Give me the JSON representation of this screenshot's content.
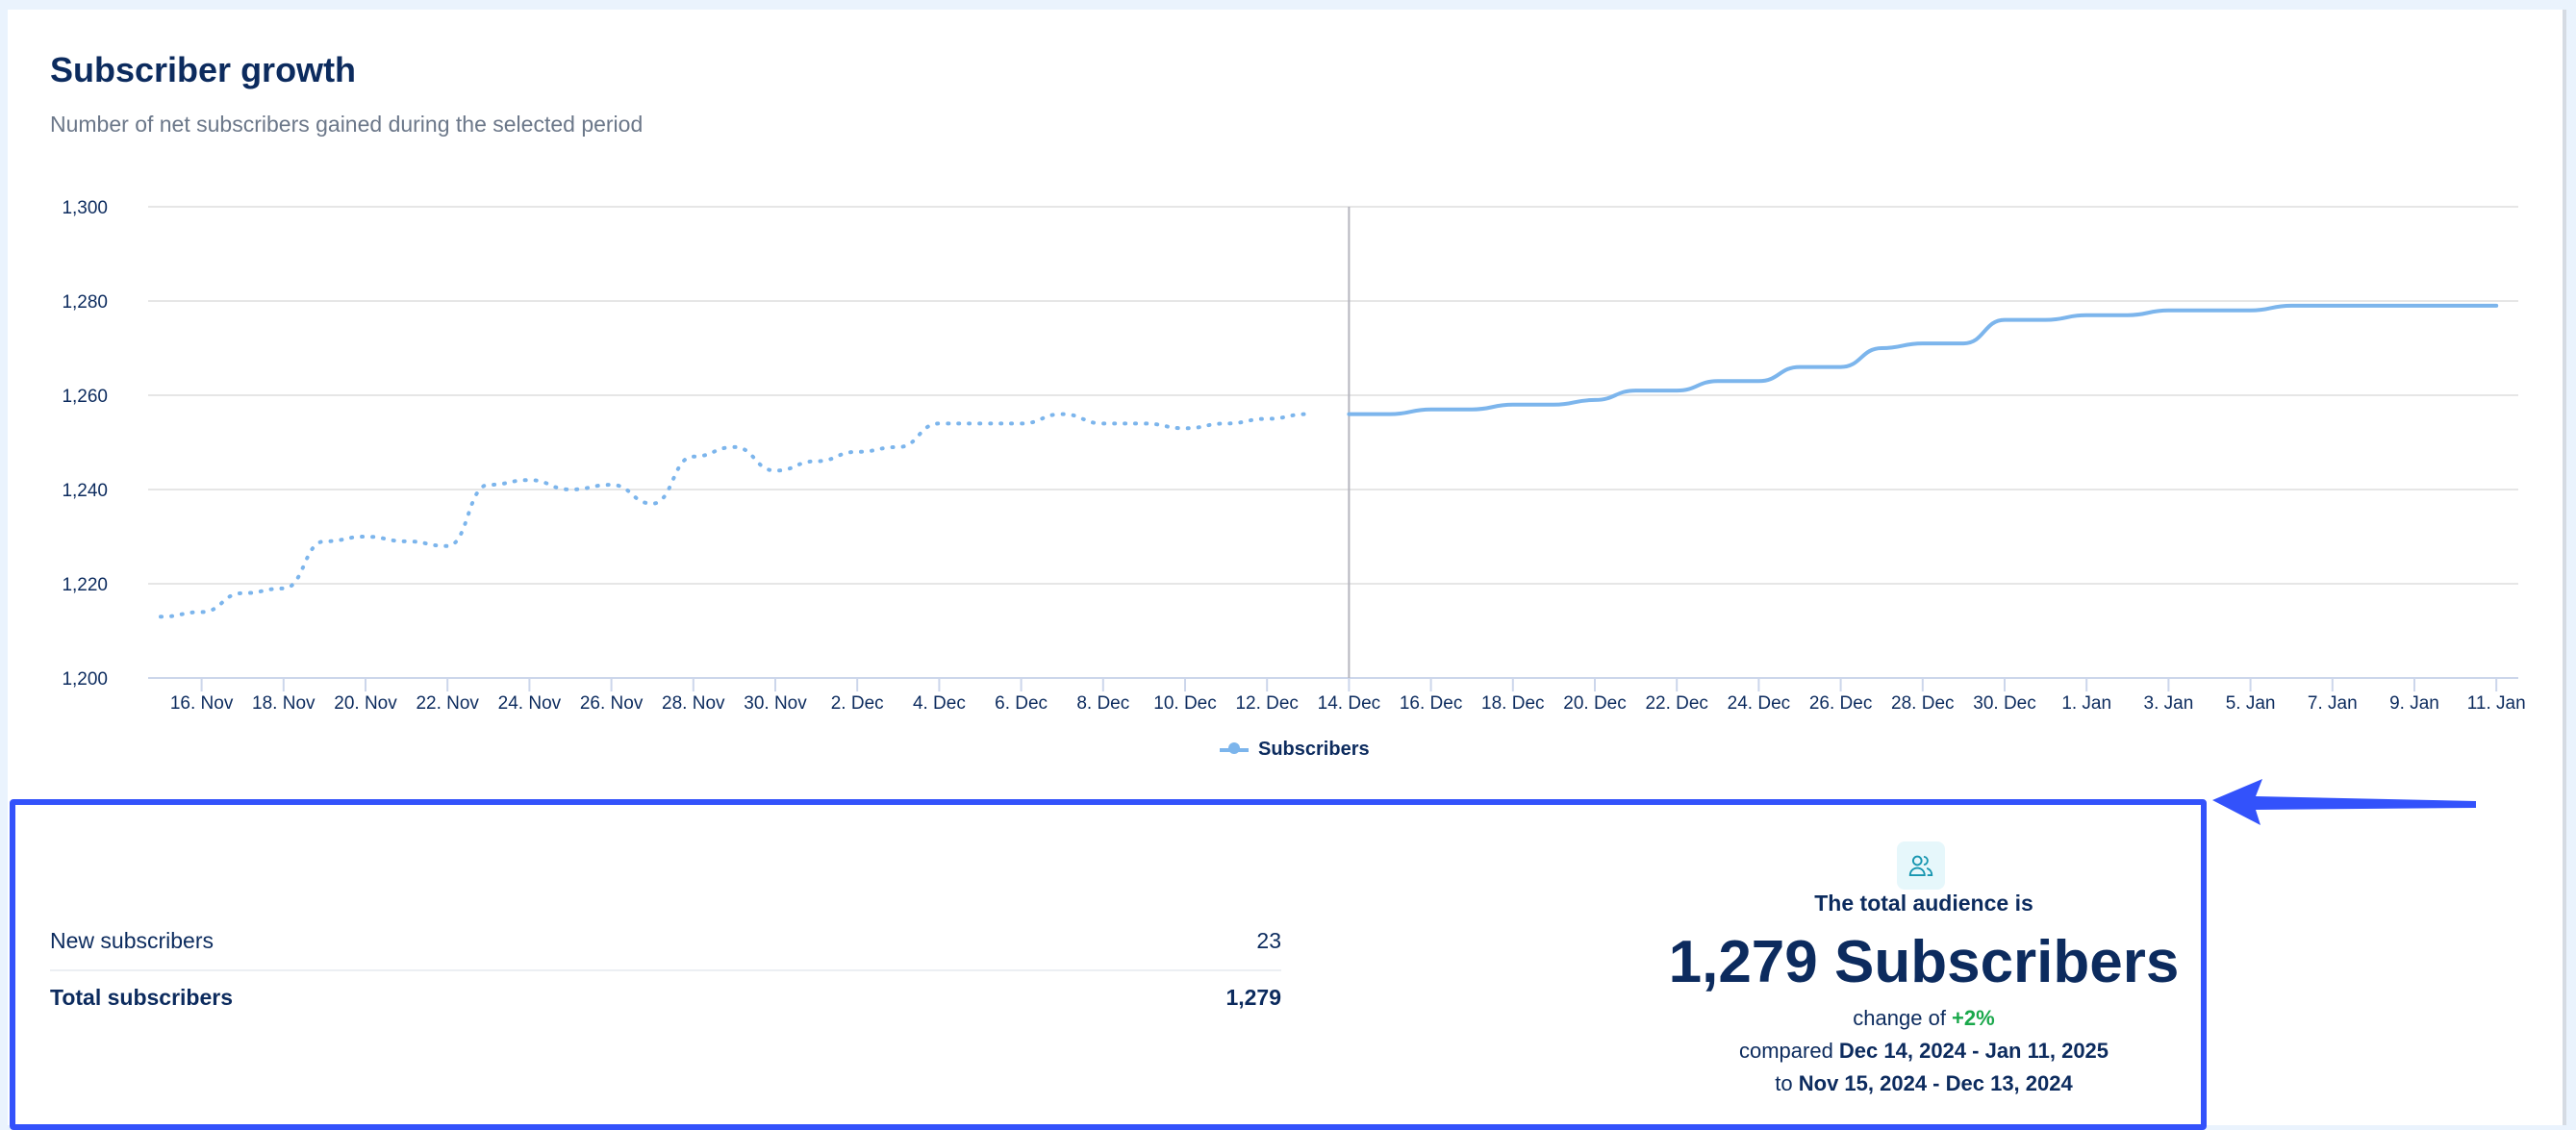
{
  "header": {
    "title": "Subscriber growth",
    "subtitle": "Number of net subscribers gained during the selected period"
  },
  "chart_data": {
    "type": "line",
    "title": "Subscriber growth",
    "subtitle": "Number of net subscribers gained during the selected period",
    "ylim": [
      1200,
      1300
    ],
    "yticks": [
      "1,200",
      "1,220",
      "1,240",
      "1,260",
      "1,280",
      "1,300"
    ],
    "ytick_values": [
      1200,
      1220,
      1240,
      1260,
      1280,
      1300
    ],
    "xticks": [
      "16. Nov",
      "18. Nov",
      "20. Nov",
      "22. Nov",
      "24. Nov",
      "26. Nov",
      "28. Nov",
      "30. Nov",
      "2. Dec",
      "4. Dec",
      "6. Dec",
      "8. Dec",
      "10. Dec",
      "12. Dec",
      "14. Dec",
      "16. Dec",
      "18. Dec",
      "20. Dec",
      "22. Dec",
      "24. Dec",
      "26. Dec",
      "28. Dec",
      "30. Dec",
      "1. Jan",
      "3. Jan",
      "5. Jan",
      "7. Jan",
      "9. Jan",
      "11. Jan"
    ],
    "x_start": "2024-11-15",
    "grid": true,
    "legend_placement": "bottom",
    "divider_date": "2024-12-14",
    "color": "#7cb5ec",
    "series": [
      {
        "name": "Subscribers",
        "style": "solid",
        "x_start": "2024-12-14",
        "values": [
          1256,
          1256,
          1257,
          1257,
          1258,
          1258,
          1259,
          1261,
          1261,
          1263,
          1263,
          1266,
          1266,
          1270,
          1271,
          1271,
          1276,
          1276,
          1277,
          1277,
          1278,
          1278,
          1278,
          1279,
          1279,
          1279,
          1279,
          1279,
          1279
        ]
      },
      {
        "style": "dotted",
        "x_start": "2024-11-15",
        "values": [
          1213,
          1214,
          1218,
          1219,
          1229,
          1230,
          1229,
          1228,
          1241,
          1242,
          1240,
          1241,
          1237,
          1247,
          1249,
          1244,
          1246,
          1248,
          1249,
          1254,
          1254,
          1254,
          1256,
          1254,
          1254,
          1253,
          1254,
          1255,
          1256
        ]
      }
    ]
  },
  "legend": {
    "label": "Subscribers"
  },
  "stats": {
    "rows": [
      {
        "label": "New subscribers",
        "value": "23"
      },
      {
        "label": "Total subscribers",
        "value": "1,279"
      }
    ]
  },
  "summary": {
    "icon": "users-icon",
    "label": "The total audience is",
    "big": "1,279 Subscribers",
    "change_prefix": "change of ",
    "change_value": "+2%",
    "change_color": "#1aa84b",
    "compared_prefix": "compared ",
    "compared_range": "Dec 14, 2024 - Jan 11, 2025",
    "to_prefix": "to ",
    "to_range": "Nov 15, 2024 - Dec 13, 2024"
  },
  "annotation": {
    "color": "#3352fb"
  }
}
